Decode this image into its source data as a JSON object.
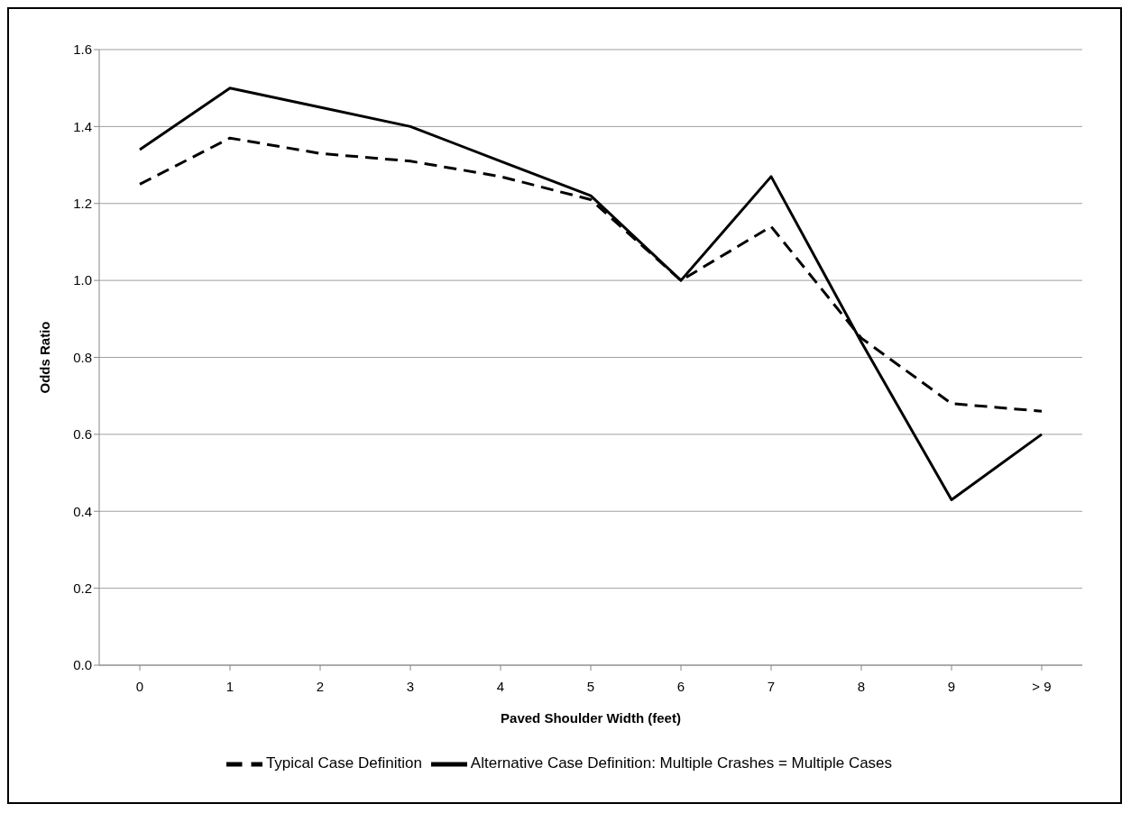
{
  "chart_data": {
    "type": "line",
    "xlabel": "Paved Shoulder Width (feet)",
    "ylabel": "Odds Ratio",
    "categories": [
      "0",
      "1",
      "2",
      "3",
      "4",
      "5",
      "6",
      "7",
      "8",
      "9",
      "> 9"
    ],
    "series": [
      {
        "name": "Typical Case Definition",
        "color": "#000000",
        "line_style": "dashed",
        "values": [
          1.25,
          1.37,
          1.33,
          1.31,
          1.27,
          1.21,
          1.0,
          1.14,
          0.85,
          0.68,
          0.66
        ]
      },
      {
        "name": "Alternative Case Definition: Multiple Crashes = Multiple Cases",
        "color": "#000000",
        "line_style": "solid",
        "values": [
          1.34,
          1.5,
          1.45,
          1.4,
          1.31,
          1.22,
          1.0,
          1.27,
          0.84,
          0.43,
          0.6
        ]
      }
    ],
    "ylim": [
      0,
      1.6
    ],
    "yticks": [
      {
        "value": 0,
        "label": "0.0"
      },
      0.2,
      0.4,
      0.6,
      0.8,
      {
        "value": 1,
        "label": "1.0"
      },
      1.2,
      1.4,
      1.6
    ],
    "grid": "y",
    "legend": "bottom",
    "marker": "none"
  }
}
